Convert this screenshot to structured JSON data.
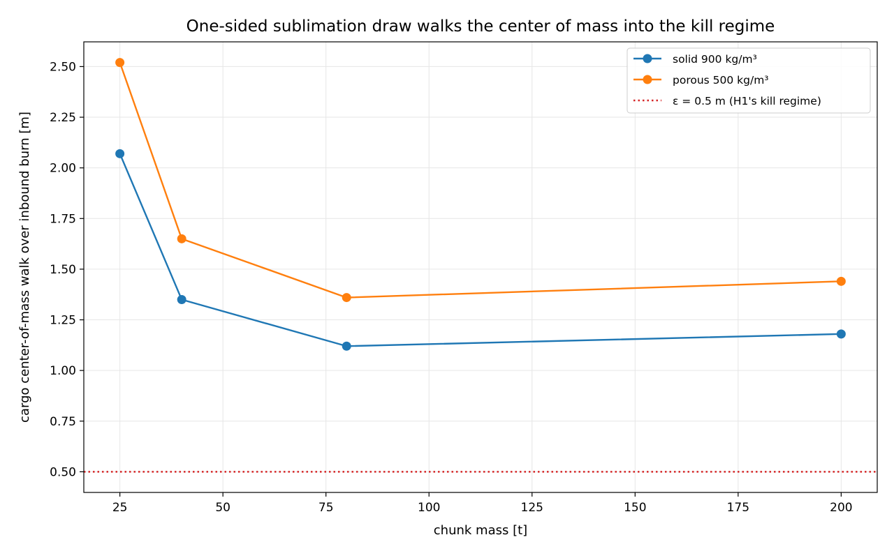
{
  "chart_data": {
    "type": "line",
    "title": "One-sided sublimation draw walks the center of mass into the kill regime",
    "xlabel": "chunk mass [t]",
    "ylabel": "cargo center-of-mass walk over inbound burn [m]",
    "xlim": [
      16.25,
      208.75
    ],
    "ylim": [
      0.398,
      2.622
    ],
    "xticks": [
      25,
      50,
      75,
      100,
      125,
      150,
      175,
      200
    ],
    "yticks": [
      0.5,
      0.75,
      1.0,
      1.25,
      1.5,
      1.75,
      2.0,
      2.25,
      2.5
    ],
    "xtick_labels": [
      "25",
      "50",
      "75",
      "100",
      "125",
      "150",
      "175",
      "200"
    ],
    "ytick_labels": [
      "0.50",
      "0.75",
      "1.00",
      "1.25",
      "1.50",
      "1.75",
      "2.00",
      "2.25",
      "2.50"
    ],
    "grid": true,
    "legend_position": "top-right",
    "x": [
      25,
      40,
      80,
      200
    ],
    "series": [
      {
        "name": "solid 900 kg/m³",
        "values": [
          2.07,
          1.35,
          1.12,
          1.18
        ],
        "color": "#1f77b4",
        "marker": "circle"
      },
      {
        "name": "porous 500 kg/m³",
        "values": [
          2.52,
          1.65,
          1.36,
          1.44
        ],
        "color": "#ff7f0e",
        "marker": "circle"
      }
    ],
    "reference_lines": [
      {
        "name": "ε = 0.5 m (H1's kill regime)",
        "y": 0.5,
        "color": "#d62728",
        "style": "dotted"
      }
    ]
  }
}
